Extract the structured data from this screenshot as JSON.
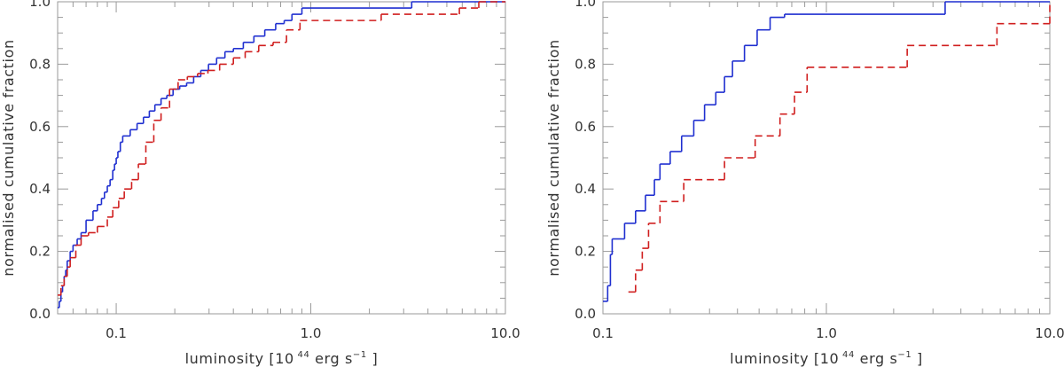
{
  "chart_data": [
    {
      "type": "line",
      "xlabel": {
        "prefix": "luminosity [10",
        "exp": "44",
        "suffix": " erg s",
        "unit_exp": "−1",
        "close": "]"
      },
      "ylabel": "normalised cumulative fraction",
      "x_scale": "log",
      "xlim": [
        0.05,
        10.0
      ],
      "ylim": [
        0.0,
        1.0
      ],
      "x_ticks": [
        0.1,
        1.0,
        10.0
      ],
      "x_tick_labels": [
        "0.1",
        "1.0",
        "10.0"
      ],
      "y_ticks": [
        0.0,
        0.2,
        0.4,
        0.6,
        0.8,
        1.0
      ],
      "y_tick_labels": [
        "0.0",
        "0.2",
        "0.4",
        "0.6",
        "0.8",
        "1.0"
      ],
      "grid": false,
      "series": [
        {
          "style": "solid",
          "color": "#1f2fd0",
          "x": [
            0.05,
            0.051,
            0.052,
            0.053,
            0.054,
            0.055,
            0.056,
            0.058,
            0.06,
            0.063,
            0.066,
            0.07,
            0.076,
            0.08,
            0.084,
            0.087,
            0.09,
            0.093,
            0.096,
            0.098,
            0.1,
            0.102,
            0.105,
            0.108,
            0.118,
            0.128,
            0.138,
            0.148,
            0.158,
            0.17,
            0.182,
            0.196,
            0.212,
            0.23,
            0.25,
            0.272,
            0.298,
            0.328,
            0.362,
            0.4,
            0.45,
            0.51,
            0.58,
            0.66,
            0.73,
            0.8,
            0.9,
            3.3,
            10.0
          ],
          "y": [
            0.02,
            0.04,
            0.07,
            0.09,
            0.12,
            0.14,
            0.17,
            0.2,
            0.22,
            0.24,
            0.26,
            0.3,
            0.33,
            0.35,
            0.37,
            0.39,
            0.41,
            0.43,
            0.46,
            0.48,
            0.5,
            0.52,
            0.55,
            0.57,
            0.59,
            0.61,
            0.63,
            0.65,
            0.67,
            0.69,
            0.7,
            0.72,
            0.73,
            0.74,
            0.76,
            0.78,
            0.8,
            0.82,
            0.84,
            0.85,
            0.87,
            0.89,
            0.91,
            0.93,
            0.94,
            0.96,
            0.98,
            1.0,
            1.0
          ]
        },
        {
          "style": "dashed",
          "color": "#d01f1f",
          "x": [
            0.05,
            0.052,
            0.054,
            0.056,
            0.058,
            0.062,
            0.066,
            0.072,
            0.08,
            0.09,
            0.096,
            0.103,
            0.11,
            0.12,
            0.13,
            0.142,
            0.156,
            0.17,
            0.188,
            0.208,
            0.232,
            0.262,
            0.296,
            0.34,
            0.4,
            0.46,
            0.54,
            0.64,
            0.75,
            0.88,
            2.3,
            5.8,
            7.3,
            10.0
          ],
          "y": [
            0.06,
            0.09,
            0.12,
            0.15,
            0.18,
            0.22,
            0.25,
            0.26,
            0.28,
            0.31,
            0.34,
            0.37,
            0.4,
            0.43,
            0.48,
            0.55,
            0.62,
            0.66,
            0.72,
            0.75,
            0.76,
            0.77,
            0.78,
            0.8,
            0.82,
            0.84,
            0.86,
            0.87,
            0.91,
            0.94,
            0.96,
            0.98,
            1.0,
            1.0
          ]
        }
      ]
    },
    {
      "type": "line",
      "xlabel": {
        "prefix": "luminosity [10",
        "exp": "44",
        "suffix": " erg s",
        "unit_exp": "−1",
        "close": "]"
      },
      "ylabel": "normalised cumulative fraction",
      "x_scale": "log",
      "xlim": [
        0.1,
        10.0
      ],
      "ylim": [
        0.0,
        1.0
      ],
      "x_ticks": [
        0.1,
        1.0,
        10.0
      ],
      "x_tick_labels": [
        "0.1",
        "1.0",
        "10.0"
      ],
      "y_ticks": [
        0.0,
        0.2,
        0.4,
        0.6,
        0.8,
        1.0
      ],
      "y_tick_labels": [
        "0.0",
        "0.2",
        "0.4",
        "0.6",
        "0.8",
        "1.0"
      ],
      "grid": false,
      "series": [
        {
          "style": "solid",
          "color": "#1f2fd0",
          "x": [
            0.1,
            0.105,
            0.108,
            0.11,
            0.125,
            0.14,
            0.155,
            0.17,
            0.18,
            0.2,
            0.225,
            0.255,
            0.285,
            0.32,
            0.35,
            0.38,
            0.43,
            0.49,
            0.56,
            0.65,
            0.75,
            0.88,
            3.4,
            10.0
          ],
          "y": [
            0.04,
            0.09,
            0.19,
            0.24,
            0.29,
            0.33,
            0.38,
            0.43,
            0.48,
            0.52,
            0.57,
            0.62,
            0.67,
            0.71,
            0.76,
            0.81,
            0.86,
            0.91,
            0.95,
            0.96,
            0.96,
            0.96,
            1.0,
            1.0
          ]
        },
        {
          "style": "dashed",
          "color": "#d01f1f",
          "x": [
            0.13,
            0.14,
            0.15,
            0.16,
            0.18,
            0.23,
            0.35,
            0.48,
            0.62,
            0.72,
            0.82,
            2.3,
            5.8,
            10.0
          ],
          "y": [
            0.07,
            0.14,
            0.21,
            0.29,
            0.36,
            0.43,
            0.5,
            0.57,
            0.64,
            0.71,
            0.79,
            0.86,
            0.93,
            1.0
          ]
        }
      ]
    }
  ]
}
